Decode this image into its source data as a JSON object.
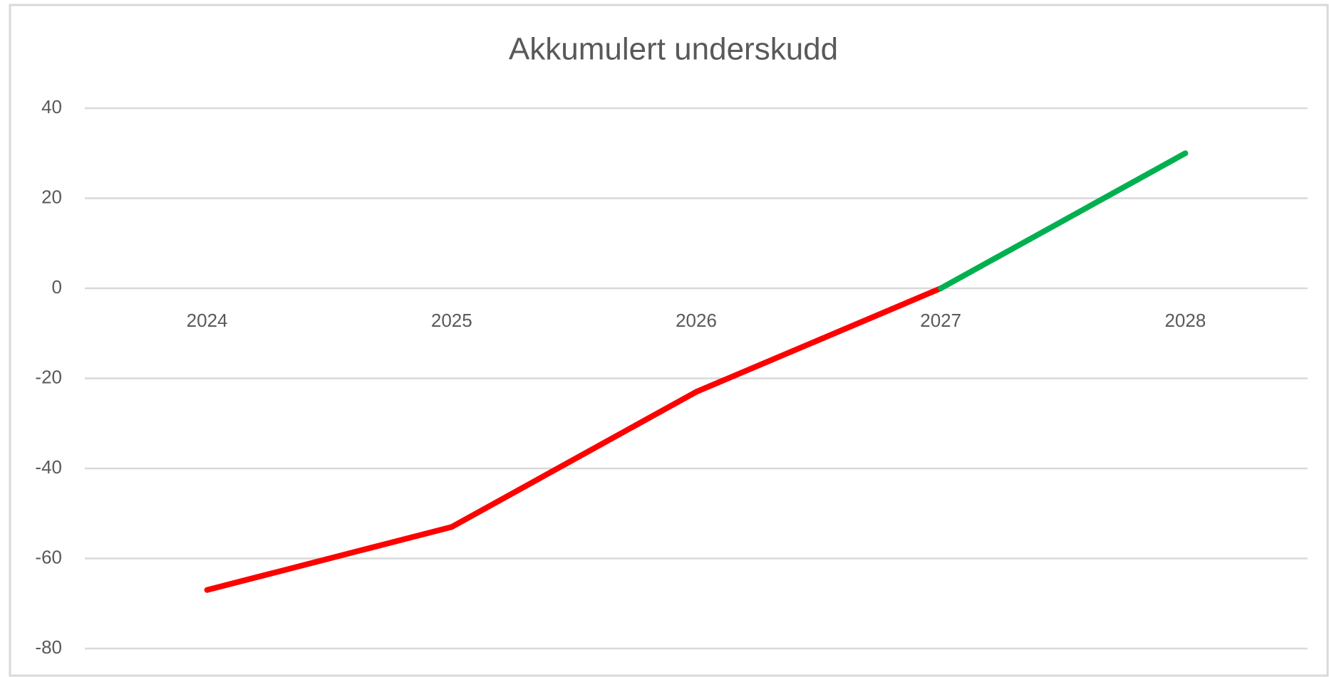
{
  "chart_data": {
    "type": "line",
    "title": "Akkumulert underskudd",
    "categories": [
      "2024",
      "2025",
      "2026",
      "2027",
      "2028"
    ],
    "values": [
      -67,
      -53,
      -23,
      0,
      30
    ],
    "colors": [
      "#ff0000",
      "#ff0000",
      "#ff0000",
      "#ff0000",
      "#00b050"
    ],
    "ylim": [
      -80,
      40
    ],
    "yticks": [
      -80,
      -60,
      -40,
      -20,
      0,
      20,
      40
    ],
    "grid": true
  }
}
